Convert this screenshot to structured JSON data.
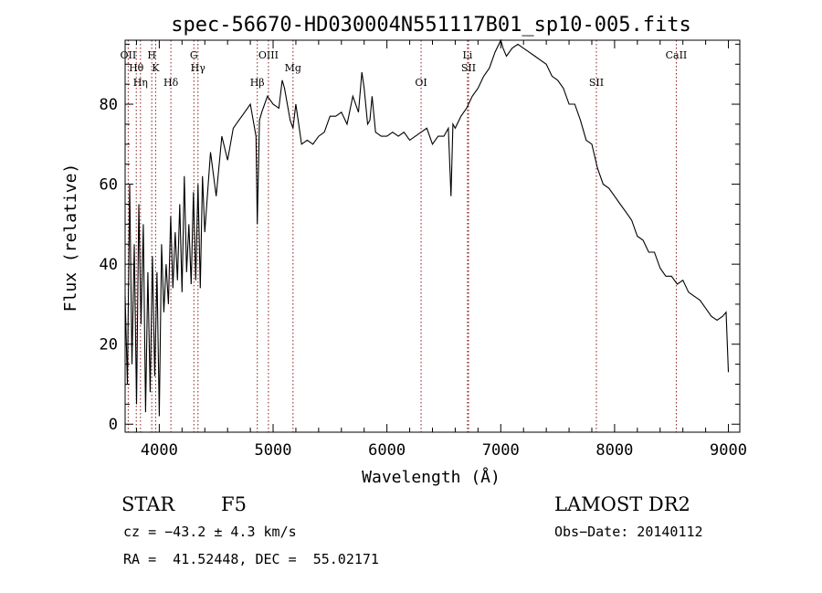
{
  "chart_data": {
    "type": "line",
    "title": "spec-56670-HD030004N551117B01_sp10-005.fits",
    "xlabel": "Wavelength (Å)",
    "ylabel": "Flux (relative)",
    "xlim": [
      3700,
      9100
    ],
    "ylim": [
      -2,
      96
    ],
    "xticks": [
      4000,
      5000,
      6000,
      7000,
      8000,
      9000
    ],
    "yticks": [
      0,
      20,
      40,
      60,
      80
    ],
    "grid": false,
    "series": [
      {
        "color": "#000000",
        "x": [
          3700,
          3720,
          3740,
          3760,
          3780,
          3800,
          3820,
          3840,
          3860,
          3880,
          3900,
          3920,
          3940,
          3960,
          3980,
          4000,
          4020,
          4040,
          4060,
          4080,
          4100,
          4120,
          4140,
          4160,
          4180,
          4200,
          4220,
          4240,
          4260,
          4280,
          4300,
          4320,
          4340,
          4360,
          4380,
          4400,
          4450,
          4500,
          4550,
          4600,
          4650,
          4700,
          4750,
          4800,
          4850,
          4861,
          4880,
          4900,
          4950,
          5000,
          5050,
          5080,
          5100,
          5150,
          5175,
          5200,
          5250,
          5300,
          5350,
          5400,
          5450,
          5500,
          5550,
          5600,
          5650,
          5700,
          5750,
          5780,
          5800,
          5830,
          5850,
          5870,
          5900,
          5950,
          6000,
          6050,
          6100,
          6150,
          6200,
          6250,
          6300,
          6350,
          6400,
          6450,
          6500,
          6540,
          6563,
          6580,
          6600,
          6650,
          6700,
          6750,
          6800,
          6850,
          6900,
          6950,
          7000,
          7020,
          7050,
          7100,
          7150,
          7200,
          7250,
          7300,
          7350,
          7400,
          7450,
          7500,
          7550,
          7600,
          7650,
          7700,
          7750,
          7800,
          7850,
          7900,
          7950,
          8000,
          8050,
          8100,
          8150,
          8200,
          8250,
          8300,
          8350,
          8400,
          8450,
          8500,
          8550,
          8600,
          8650,
          8700,
          8750,
          8800,
          8850,
          8900,
          8950,
          8980,
          9000
        ],
        "y": [
          32,
          10,
          60,
          15,
          45,
          5,
          55,
          25,
          50,
          3,
          38,
          8,
          42,
          12,
          38,
          2,
          45,
          28,
          40,
          30,
          52,
          34,
          48,
          36,
          55,
          33,
          62,
          38,
          50,
          35,
          58,
          36,
          60,
          34,
          62,
          48,
          68,
          57,
          72,
          66,
          74,
          76,
          78,
          80,
          72,
          50,
          76,
          78,
          82,
          80,
          79,
          86,
          84,
          76,
          74,
          80,
          70,
          71,
          70,
          72,
          73,
          77,
          77,
          78,
          75,
          82,
          78,
          88,
          84,
          75,
          76,
          82,
          73,
          72,
          72,
          73,
          72,
          73,
          71,
          72,
          73,
          74,
          70,
          72,
          72,
          74,
          57,
          75,
          74,
          77,
          79,
          82,
          84,
          87,
          89,
          93,
          96,
          94,
          92,
          94,
          95,
          94,
          93,
          92,
          91,
          90,
          87,
          86,
          84,
          80,
          80,
          76,
          71,
          70,
          64,
          60,
          59,
          57,
          55,
          53,
          51,
          47,
          46,
          43,
          43,
          39,
          37,
          37,
          35,
          36,
          33,
          32,
          31,
          29,
          27,
          26,
          27,
          28,
          13
        ]
      }
    ],
    "line_labels": [
      {
        "name": "OII",
        "x": 3727
      },
      {
        "name": "Hθ",
        "x": 3798
      },
      {
        "name": "Hη",
        "x": 3835
      },
      {
        "name": "H",
        "x": 3934
      },
      {
        "name": "K",
        "x": 3968
      },
      {
        "name": "Hδ",
        "x": 4102
      },
      {
        "name": "G",
        "x": 4304
      },
      {
        "name": "Hγ",
        "x": 4340
      },
      {
        "name": "Hβ",
        "x": 4861
      },
      {
        "name": "OIII",
        "x": 4959
      },
      {
        "name": "Mg",
        "x": 5175
      },
      {
        "name": "OI",
        "x": 6300
      },
      {
        "name": "Li",
        "x": 6708
      },
      {
        "name": "SII",
        "x": 6717
      },
      {
        "name": "SII",
        "x": 7840
      },
      {
        "name": "CaII",
        "x": 8542
      }
    ],
    "line_color": "#8b1a1a"
  },
  "info": {
    "object_type": "STAR",
    "subclass": "F5",
    "survey": "LAMOST DR2",
    "cz": "cz = −43.2 ± 4.3 km/s",
    "obs_date": "Obs−Date: 20140112",
    "coords": "RA =  41.52448, DEC =  55.02171"
  }
}
